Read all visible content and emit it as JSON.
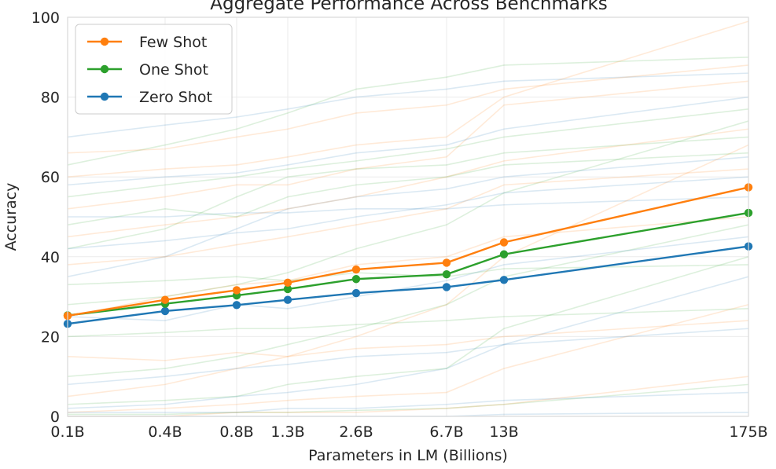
{
  "chart_data": {
    "type": "line",
    "title": "Aggregate Performance Across Benchmarks",
    "xlabel": "Parameters in LM (Billions)",
    "ylabel": "Accuracy",
    "x": [
      0.1,
      0.4,
      0.8,
      1.3,
      2.6,
      6.7,
      13,
      175
    ],
    "x_tick_labels": [
      "0.1B",
      "0.4B",
      "0.8B",
      "1.3B",
      "2.6B",
      "6.7B",
      "13B",
      "175B"
    ],
    "y_ticks": [
      0,
      20,
      40,
      60,
      80,
      100
    ],
    "ylim": [
      0,
      100
    ],
    "grid": true,
    "legend_position": "top-left",
    "series": [
      {
        "name": "Few Shot",
        "color": "#ff7f0e",
        "values": [
          25.2,
          29.2,
          31.6,
          33.5,
          36.8,
          38.5,
          43.6,
          57.4
        ]
      },
      {
        "name": "One Shot",
        "color": "#2ca02c",
        "values": [
          25.3,
          28.2,
          30.3,
          31.9,
          34.4,
          35.6,
          40.6,
          51.0
        ]
      },
      {
        "name": "Zero Shot",
        "color": "#1f77b4",
        "values": [
          23.2,
          26.4,
          27.9,
          29.2,
          30.9,
          32.4,
          34.2,
          42.6
        ]
      }
    ],
    "background_series": [
      {
        "color": "#ff7f0e",
        "values": [
          25,
          30,
          33,
          34,
          38,
          40,
          45,
          50
        ]
      },
      {
        "color": "#2ca02c",
        "values": [
          42,
          47,
          55,
          60,
          62,
          63,
          66,
          70
        ]
      },
      {
        "color": "#1f77b4",
        "values": [
          70,
          73,
          75,
          77,
          80,
          82,
          84,
          86
        ]
      },
      {
        "color": "#2ca02c",
        "values": [
          63,
          68,
          72,
          76,
          82,
          85,
          88,
          90
        ]
      },
      {
        "color": "#ff7f0e",
        "values": [
          52,
          55,
          58,
          58,
          62,
          65,
          78,
          84
        ]
      },
      {
        "color": "#1f77b4",
        "values": [
          35,
          40,
          47,
          52,
          55,
          57,
          60,
          65
        ]
      },
      {
        "color": "#ff7f0e",
        "values": [
          1,
          2,
          3,
          4,
          5,
          6,
          12,
          28
        ]
      },
      {
        "color": "#2ca02c",
        "values": [
          0.5,
          0.5,
          1,
          1,
          1.5,
          2,
          3,
          8
        ]
      },
      {
        "color": "#1f77b4",
        "values": [
          2,
          3,
          5,
          6,
          8,
          12,
          18,
          35
        ]
      },
      {
        "color": "#2ca02c",
        "values": [
          20,
          21,
          22,
          22,
          23,
          24,
          25,
          27
        ]
      },
      {
        "color": "#ff7f0e",
        "values": [
          60,
          62,
          63,
          65,
          68,
          70,
          80,
          99
        ]
      },
      {
        "color": "#1f77b4",
        "values": [
          50,
          50,
          51,
          51,
          52,
          52,
          53,
          55
        ]
      },
      {
        "color": "#2ca02c",
        "values": [
          33,
          34,
          35,
          34,
          36,
          35,
          37,
          38
        ]
      },
      {
        "color": "#ff7f0e",
        "values": [
          5,
          8,
          12,
          15,
          20,
          28,
          40,
          68
        ]
      },
      {
        "color": "#1f77b4",
        "values": [
          1,
          1,
          1,
          2,
          2,
          3,
          4,
          6
        ]
      },
      {
        "color": "#2ca02c",
        "values": [
          10,
          12,
          15,
          18,
          22,
          28,
          35,
          48
        ]
      },
      {
        "color": "#ff7f0e",
        "values": [
          45,
          48,
          50,
          52,
          55,
          60,
          64,
          72
        ]
      },
      {
        "color": "#1f77b4",
        "values": [
          58,
          60,
          61,
          63,
          66,
          68,
          72,
          80
        ]
      },
      {
        "color": "#2ca02c",
        "values": [
          48,
          52,
          50,
          55,
          58,
          60,
          63,
          66
        ]
      },
      {
        "color": "#ff7f0e",
        "values": [
          15,
          14,
          16,
          15,
          17,
          18,
          20,
          24
        ]
      },
      {
        "color": "#1f77b4",
        "values": [
          25,
          24,
          28,
          27,
          30,
          34,
          38,
          45
        ]
      },
      {
        "color": "#2ca02c",
        "values": [
          3,
          4,
          5,
          8,
          10,
          12,
          22,
          40
        ]
      },
      {
        "color": "#ff7f0e",
        "values": [
          66,
          67,
          70,
          72,
          76,
          78,
          82,
          88
        ]
      },
      {
        "color": "#1f77b4",
        "values": [
          8,
          10,
          12,
          13,
          15,
          16,
          18,
          22
        ]
      },
      {
        "color": "#2ca02c",
        "values": [
          28,
          30,
          33,
          36,
          42,
          48,
          56,
          74
        ]
      },
      {
        "color": "#ff7f0e",
        "values": [
          38,
          40,
          43,
          45,
          48,
          52,
          58,
          62
        ]
      },
      {
        "color": "#1f77b4",
        "values": [
          0,
          0,
          0,
          0,
          0,
          0,
          0.5,
          1
        ]
      },
      {
        "color": "#2ca02c",
        "values": [
          55,
          58,
          60,
          62,
          64,
          67,
          70,
          77
        ]
      },
      {
        "color": "#ff7f0e",
        "values": [
          0,
          0,
          1,
          1,
          1,
          2,
          3,
          10
        ]
      },
      {
        "color": "#1f77b4",
        "values": [
          42,
          44,
          46,
          47,
          50,
          53,
          56,
          60
        ]
      }
    ]
  }
}
